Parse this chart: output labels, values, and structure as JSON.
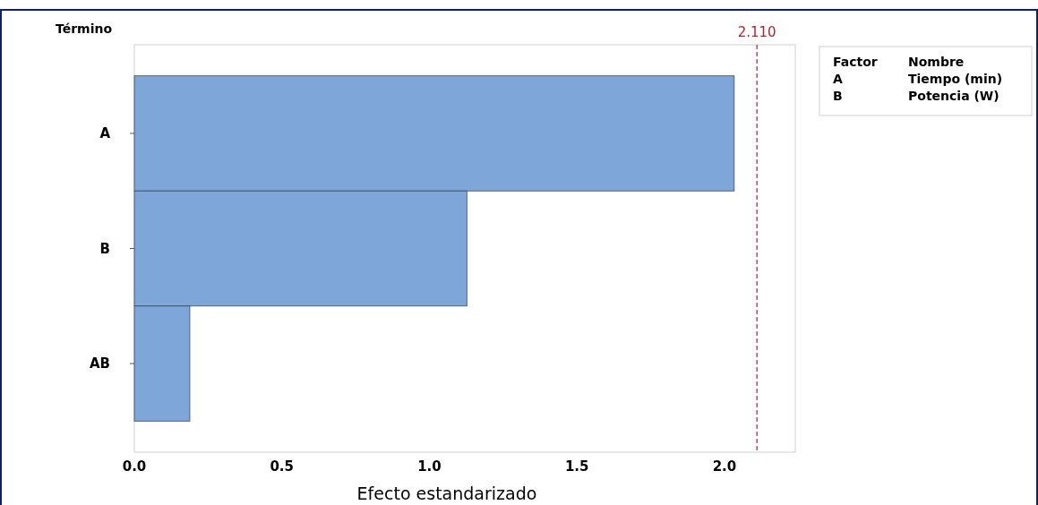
{
  "chart_data": {
    "type": "bar",
    "orientation": "horizontal",
    "ylabel": "Término",
    "xlabel": "Efecto estandarizado",
    "categories": [
      "A",
      "B",
      "AB"
    ],
    "values": [
      2.033,
      1.127,
      0.188
    ],
    "color": "#7ea6d9",
    "xlim": [
      0,
      2.24
    ],
    "xticks": [
      {
        "value": 0,
        "label": "0.0"
      },
      {
        "value": 0.5,
        "label": "0.5"
      },
      {
        "value": 1,
        "label": "1.0"
      },
      {
        "value": 1.5,
        "label": "1.5"
      },
      {
        "value": 2,
        "label": "2.0"
      }
    ],
    "ref_lines": [
      {
        "axis": "x",
        "value": 2.11,
        "label": "2.110",
        "color": "#b22234",
        "line_style": "dashed"
      }
    ],
    "annotations": [
      "Factor",
      "Nombre",
      "A",
      "Tiempo (min)",
      "B",
      "Potencia (W)"
    ],
    "grid": false
  }
}
